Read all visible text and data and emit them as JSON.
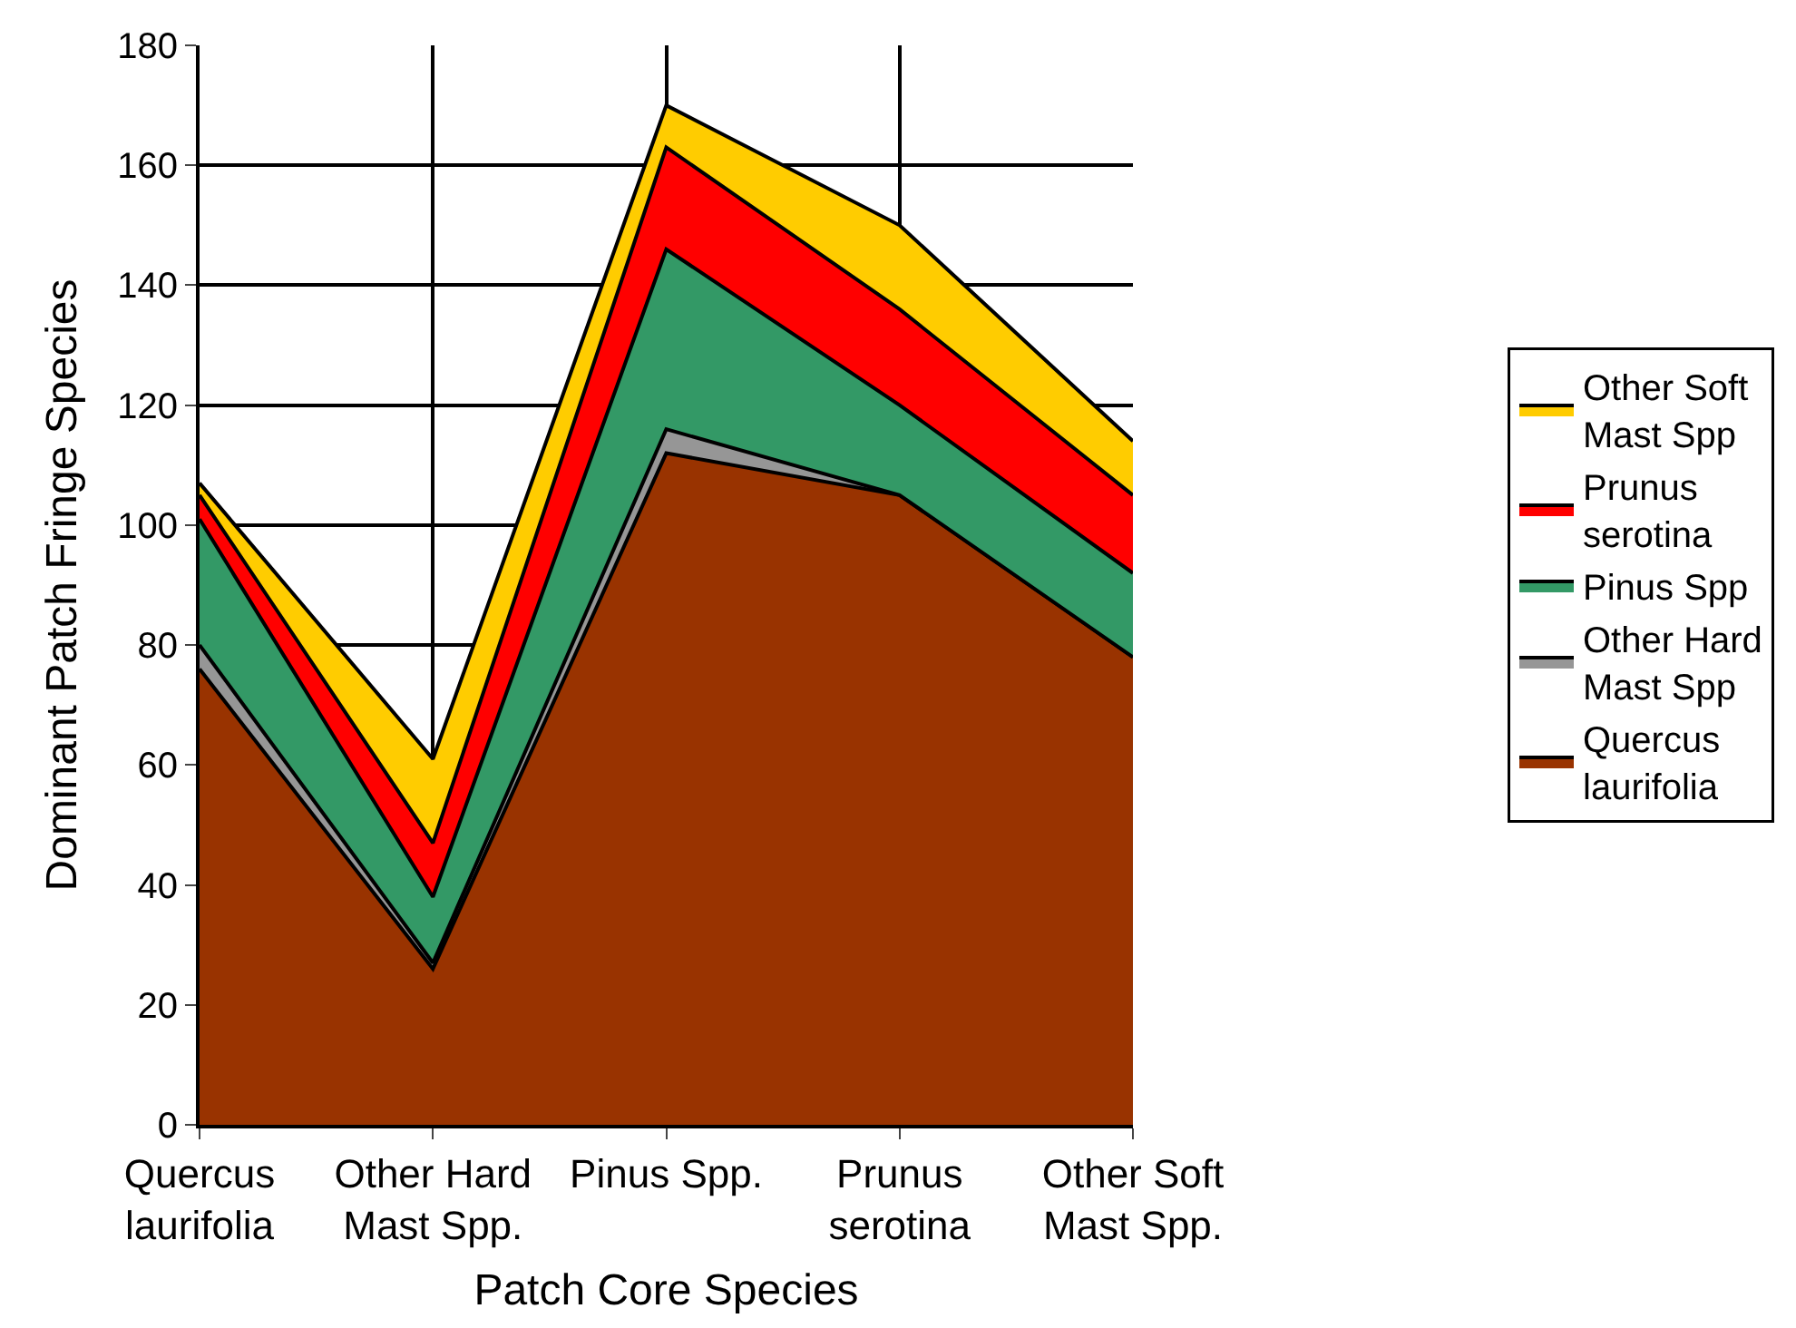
{
  "chart_data": {
    "type": "area",
    "stacked": true,
    "xlabel": "Patch Core Species",
    "ylabel": "Dominant Patch Fringe Species",
    "categories": [
      "Quercus laurifolia",
      "Other Hard Mast Spp.",
      "Pinus Spp.",
      "Prunus serotina",
      "Other Soft Mast Spp."
    ],
    "series": [
      {
        "name": "Quercus laurifolia",
        "color": "#993300",
        "values": [
          76,
          26,
          112,
          105,
          78
        ]
      },
      {
        "name": "Other Hard Mast Spp",
        "color": "#969696",
        "values": [
          4,
          1,
          4,
          0,
          0
        ]
      },
      {
        "name": "Pinus Spp",
        "color": "#339966",
        "values": [
          21,
          11,
          30,
          15,
          14
        ]
      },
      {
        "name": "Prunus serotina",
        "color": "#ff0000",
        "values": [
          4,
          9,
          17,
          16,
          13
        ]
      },
      {
        "name": "Other Soft Mast Spp",
        "color": "#ffcc00",
        "values": [
          2,
          14,
          7,
          14,
          9
        ]
      }
    ],
    "ylim": [
      0,
      180
    ],
    "yticks": [
      0,
      20,
      40,
      60,
      80,
      100,
      120,
      140,
      160,
      180
    ],
    "grid": true,
    "legend": "right"
  }
}
